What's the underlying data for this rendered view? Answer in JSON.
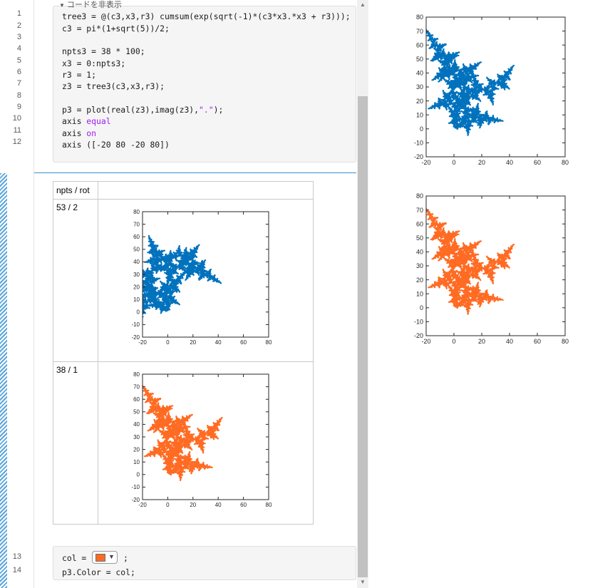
{
  "editor": {
    "toggle_label": "コードを非表示",
    "line_numbers": [
      "1",
      "2",
      "3",
      "4",
      "5",
      "6",
      "7",
      "8",
      "9",
      "10",
      "11",
      "12"
    ],
    "lines": [
      [
        {
          "t": "tree3 = @(c3,x3,r3) cumsum(exp(sqrt(-1)*(c3*x3.*x3 + r3)));"
        }
      ],
      [
        {
          "t": "c3 = pi*(1+sqrt(5))/2;"
        }
      ],
      [
        {
          "t": ""
        }
      ],
      [
        {
          "t": "npts3 = 38 * 100;"
        }
      ],
      [
        {
          "t": "x3 = 0:npts3;"
        }
      ],
      [
        {
          "t": "r3 = 1;"
        }
      ],
      [
        {
          "t": "z3 = tree3(c3,x3,r3);"
        }
      ],
      [
        {
          "t": ""
        }
      ],
      [
        {
          "t": "p3 = plot(real(z3),imag(z3),"
        },
        {
          "t": "\".\"",
          "kw": true
        },
        {
          "t": ");"
        }
      ],
      [
        {
          "t": "axis "
        },
        {
          "t": "equal",
          "kw": true
        }
      ],
      [
        {
          "t": "axis "
        },
        {
          "t": "on",
          "kw": true
        }
      ],
      [
        {
          "t": "axis ([-20 80 -20 80])"
        }
      ]
    ]
  },
  "output_table": {
    "header": "npts / rot",
    "rows": [
      {
        "label": "53 / 2",
        "color": "#0072bd"
      },
      {
        "label": "38 / 1",
        "color": "#ff6b23"
      }
    ]
  },
  "editor2": {
    "line_numbers": [
      "13",
      "14"
    ],
    "line1_prefix": "col = ",
    "line1_suffix": ";",
    "line2": "p3.Color = col;",
    "picker_color": "#ff6b23"
  },
  "plots": {
    "right_top_color": "#0072bd",
    "right_bottom_color": "#ff6b23"
  },
  "chart_data": [
    {
      "type": "scatter",
      "series_color": "#0072bd",
      "xlim": [
        -20,
        80
      ],
      "ylim": [
        -20,
        80
      ],
      "xticks": [
        -20,
        0,
        20,
        40,
        60,
        80
      ],
      "yticks": [
        -20,
        -10,
        0,
        10,
        20,
        30,
        40,
        50,
        60,
        70,
        80
      ]
    },
    {
      "type": "scatter",
      "series_color": "#ff6b23",
      "xlim": [
        -20,
        80
      ],
      "ylim": [
        -20,
        80
      ],
      "xticks": [
        -20,
        0,
        20,
        40,
        60,
        80
      ],
      "yticks": [
        -20,
        -10,
        0,
        10,
        20,
        30,
        40,
        50,
        60,
        70,
        80
      ]
    },
    {
      "type": "scatter",
      "series_color": "#0072bd",
      "xlim": [
        -20,
        80
      ],
      "ylim": [
        -20,
        80
      ],
      "xticks": [
        -20,
        0,
        20,
        40,
        60,
        80
      ],
      "yticks": [
        -20,
        -10,
        0,
        10,
        20,
        30,
        40,
        50,
        60,
        70,
        80
      ]
    },
    {
      "type": "scatter",
      "series_color": "#ff6b23",
      "xlim": [
        -20,
        80
      ],
      "ylim": [
        -20,
        80
      ],
      "xticks": [
        -20,
        0,
        20,
        40,
        60,
        80
      ],
      "yticks": [
        -20,
        -10,
        0,
        10,
        20,
        30,
        40,
        50,
        60,
        70,
        80
      ]
    }
  ]
}
